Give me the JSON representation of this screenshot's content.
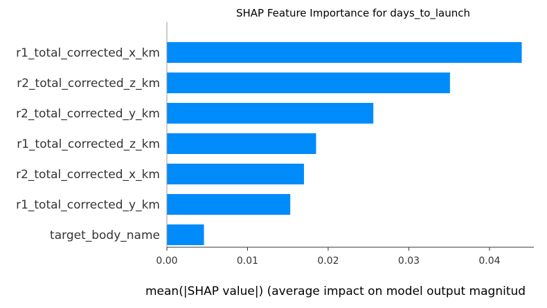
{
  "chart_data": {
    "type": "bar",
    "orientation": "horizontal",
    "title": "SHAP Feature Importance for days_to_launch",
    "xlabel": "mean(|SHAP value|) (average impact on model output magnitud",
    "ylabel": "",
    "categories": [
      "r1_total_corrected_x_km",
      "r2_total_corrected_z_km",
      "r2_total_corrected_y_km",
      "r1_total_corrected_z_km",
      "r2_total_corrected_x_km",
      "r1_total_corrected_y_km",
      "target_body_name"
    ],
    "values": [
      0.044,
      0.0351,
      0.0256,
      0.0185,
      0.017,
      0.0153,
      0.0046
    ],
    "xlim": [
      0.0,
      0.0455
    ],
    "x_ticks": [
      0.0,
      0.01,
      0.02,
      0.03,
      0.04
    ],
    "x_tick_labels": [
      "0.00",
      "0.01",
      "0.02",
      "0.03",
      "0.04"
    ],
    "grid": false,
    "bar_color": "#008bfb",
    "axis_color": "#333333"
  }
}
